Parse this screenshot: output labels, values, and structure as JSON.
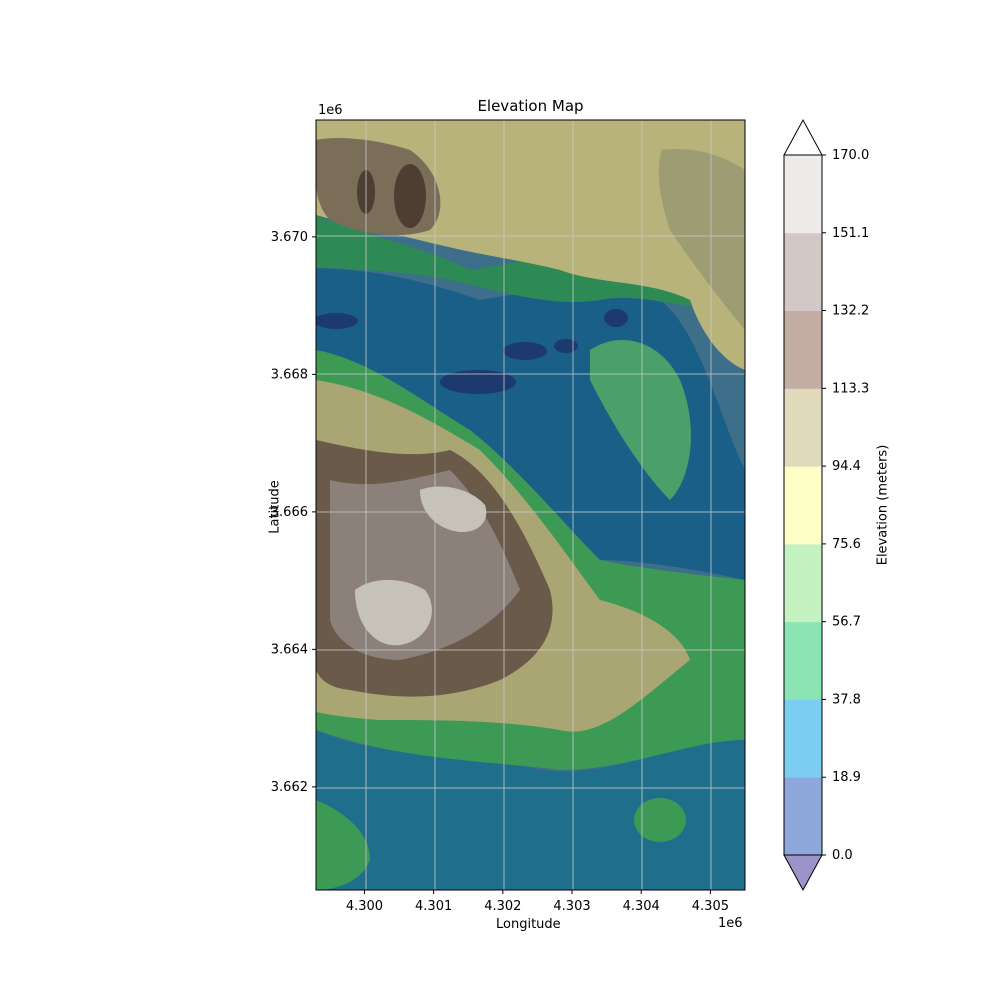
{
  "title": "Elevation Map",
  "xlabel": "Longitude",
  "ylabel": "Latitude",
  "x_offset_label": "1e6",
  "y_offset_label": "1e6",
  "colorbar": {
    "label": "Elevation (meters)",
    "ticks": [
      "0.0",
      "18.9",
      "37.8",
      "56.7",
      "75.6",
      "94.4",
      "113.3",
      "132.2",
      "151.1",
      "170.0"
    ],
    "colors": [
      "#8fa8dc",
      "#7ccdf2",
      "#8ae4b3",
      "#c4f2c0",
      "#feffc6",
      "#e1d9bb",
      "#c4ada2",
      "#d4c8c7",
      "#efebeb"
    ],
    "under_color": "#9d93c8",
    "over_color": "#ffffff"
  },
  "chart_data": {
    "type": "heatmap",
    "title": "Elevation Map",
    "xlabel": "Longitude",
    "ylabel": "Latitude",
    "x_ticks": [
      "4.300",
      "4.301",
      "4.302",
      "4.303",
      "4.304",
      "4.305"
    ],
    "y_ticks": [
      "3.662",
      "3.664",
      "3.666",
      "3.668",
      "3.670"
    ],
    "xlim": [
      4299300,
      4305500
    ],
    "ylim": [
      3660500,
      3671700
    ],
    "grid": true,
    "levels": [
      0.0,
      18.9,
      37.8,
      56.7,
      75.6,
      94.4,
      113.3,
      132.2,
      151.1,
      170.0
    ]
  }
}
